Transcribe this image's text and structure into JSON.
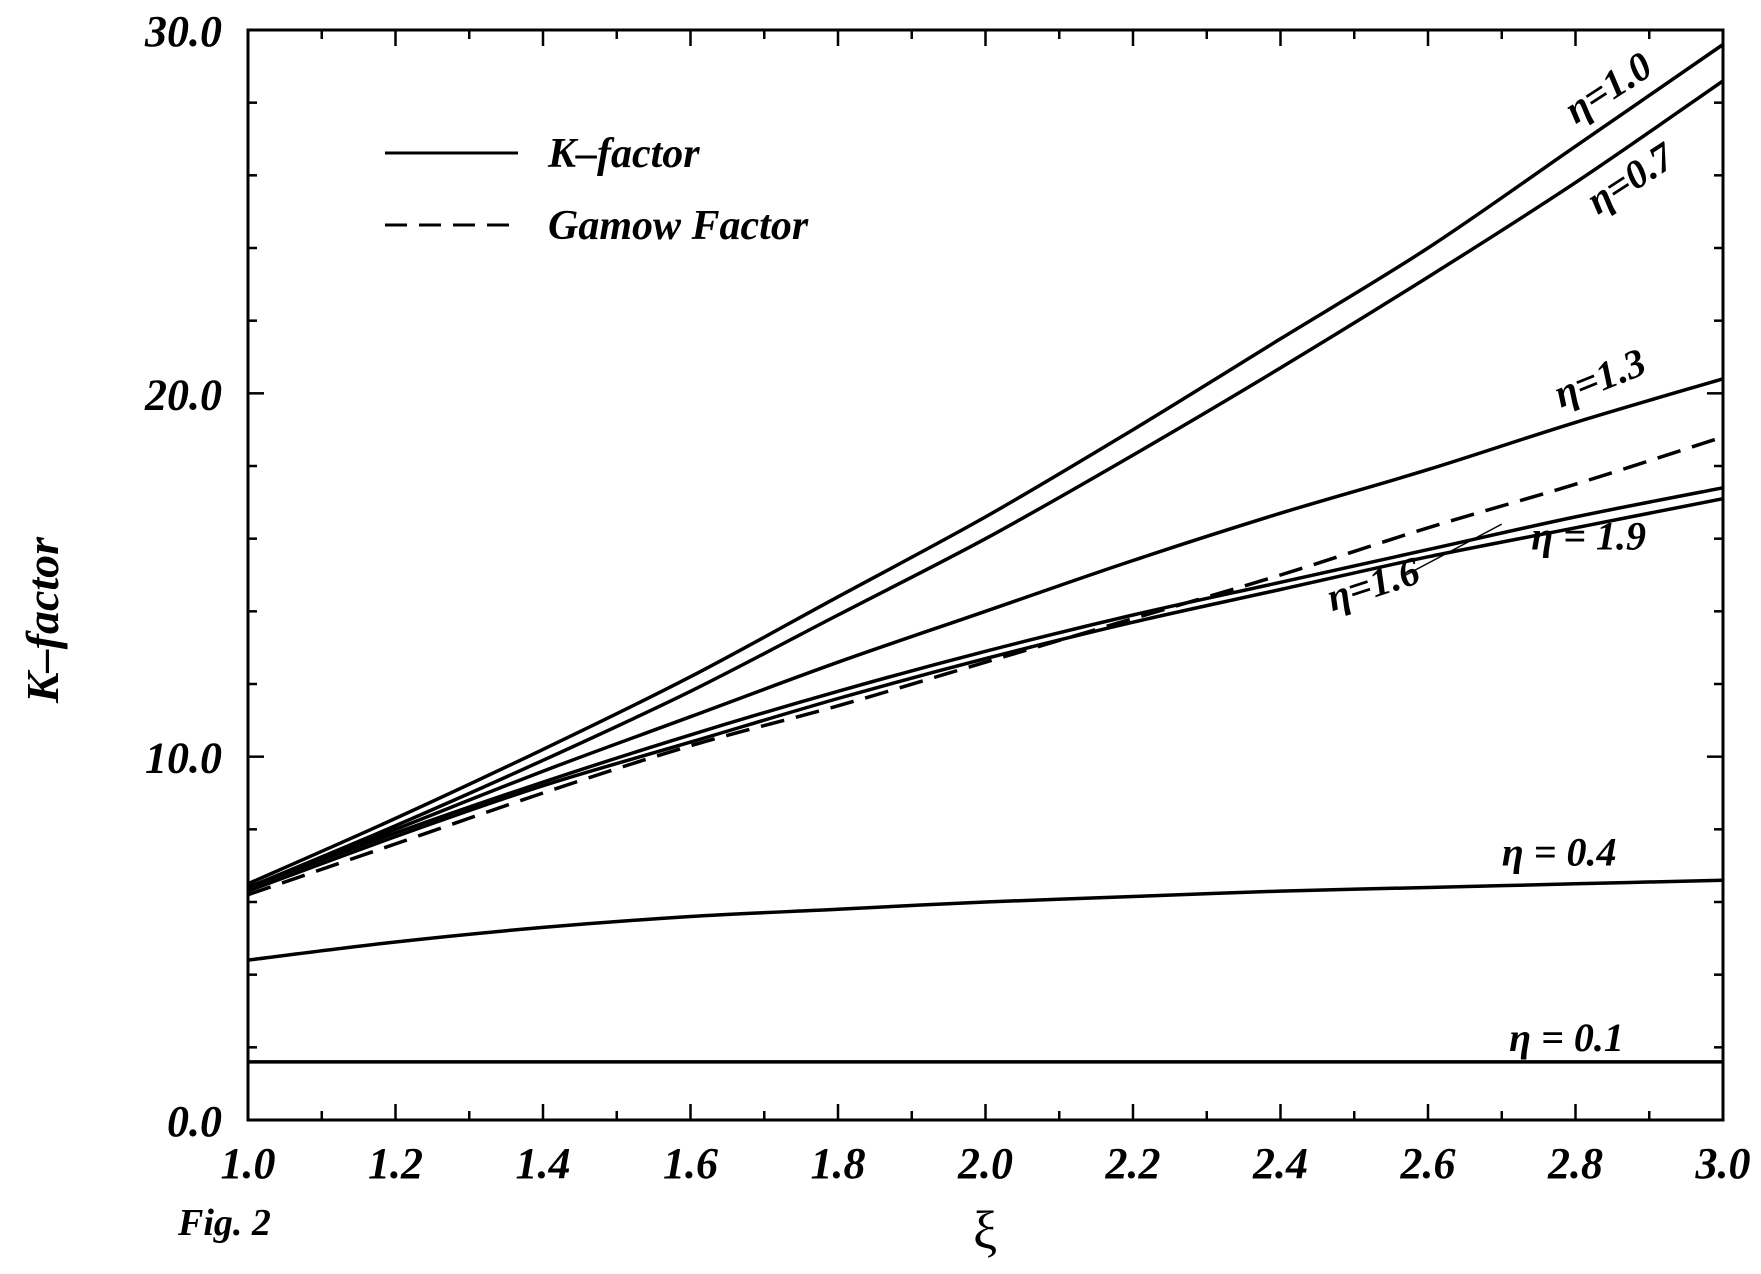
{
  "figure_label": "Fig. 2",
  "legend": {
    "solid_label": "K–factor",
    "dashed_label": "Gamow Factor"
  },
  "chart_data": {
    "type": "line",
    "xlabel": "ξ",
    "ylabel": "K–factor",
    "xlim": [
      1.0,
      3.0
    ],
    "ylim": [
      0.0,
      30.0
    ],
    "x_ticks": [
      "1.0",
      "1.2",
      "1.4",
      "1.6",
      "1.8",
      "2.0",
      "2.2",
      "2.4",
      "2.6",
      "2.8",
      "3.0"
    ],
    "y_ticks": [
      "0.0",
      "10.0",
      "20.0",
      "30.0"
    ],
    "grid": false,
    "legend_position": "top-left",
    "x": [
      1.0,
      1.2,
      1.4,
      1.6,
      1.8,
      2.0,
      2.2,
      2.4,
      2.6,
      2.8,
      3.0
    ],
    "series": [
      {
        "name": "η=1.0",
        "style": "solid",
        "values": [
          6.5,
          8.3,
          10.2,
          12.2,
          14.4,
          16.6,
          19.0,
          21.5,
          24.0,
          26.8,
          29.6
        ]
      },
      {
        "name": "η=0.7",
        "style": "solid",
        "values": [
          6.4,
          8.1,
          9.9,
          11.8,
          13.9,
          16.0,
          18.3,
          20.7,
          23.2,
          25.8,
          28.6
        ]
      },
      {
        "name": "η=1.3",
        "style": "solid",
        "values": [
          6.4,
          8.0,
          9.6,
          11.1,
          12.6,
          14.0,
          15.4,
          16.7,
          17.9,
          19.2,
          20.4
        ]
      },
      {
        "name": "η=1.6",
        "style": "solid",
        "values": [
          6.4,
          7.9,
          9.3,
          10.6,
          11.8,
          12.9,
          13.9,
          14.8,
          15.7,
          16.6,
          17.4
        ]
      },
      {
        "name": "η = 1.9",
        "style": "solid",
        "values": [
          6.3,
          7.8,
          9.2,
          10.4,
          11.6,
          12.7,
          13.7,
          14.6,
          15.5,
          16.3,
          17.1
        ]
      },
      {
        "name": "Gamow Factor",
        "style": "dashed",
        "values": [
          6.2,
          7.6,
          9.0,
          10.3,
          11.4,
          12.6,
          13.8,
          15.0,
          16.3,
          17.5,
          18.8
        ]
      },
      {
        "name": "η = 0.4",
        "style": "solid",
        "values": [
          4.4,
          4.9,
          5.3,
          5.6,
          5.8,
          6.0,
          6.15,
          6.3,
          6.4,
          6.5,
          6.6
        ]
      },
      {
        "name": "η = 0.1",
        "style": "solid",
        "values": [
          1.6,
          1.6,
          1.6,
          1.6,
          1.6,
          1.6,
          1.6,
          1.6,
          1.6,
          1.6,
          1.6
        ]
      }
    ]
  }
}
